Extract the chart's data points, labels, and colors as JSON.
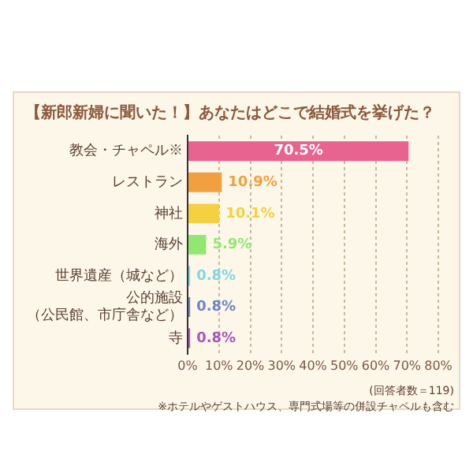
{
  "chart_data": {
    "type": "bar",
    "orientation": "horizontal",
    "title": "【新郎新婦に聞いた！】あなたはどこで結婚式を挙げた？",
    "categories": [
      "教会・チャペル※",
      "レストラン",
      "神社",
      "海外",
      "世界遺産（城など）",
      "公的施設（公民館、市庁舎など）",
      "寺"
    ],
    "values": [
      70.5,
      10.9,
      10.1,
      5.9,
      0.8,
      0.8,
      0.8
    ],
    "colors": [
      "#e8638f",
      "#f0a040",
      "#f5d040",
      "#90e870",
      "#80d8e0",
      "#6a86c4",
      "#a858b8"
    ],
    "value_labels": [
      "70.5%",
      "10.9%",
      "10.1%",
      "5.9%",
      "0.8%",
      "0.8%",
      "0.8%"
    ],
    "xlim": [
      0,
      80
    ],
    "xticks": [
      {
        "value": 0,
        "label": "0%"
      },
      {
        "value": 10,
        "label": "10%"
      },
      {
        "value": 20,
        "label": "20%"
      },
      {
        "value": 30,
        "label": "30%"
      },
      {
        "value": 40,
        "label": "40%"
      },
      {
        "value": 50,
        "label": "50%"
      },
      {
        "value": 60,
        "label": "60%"
      },
      {
        "value": 70,
        "label": "70%"
      },
      {
        "value": 80,
        "label": "80%"
      }
    ],
    "grid": "x",
    "legend": false,
    "annotations": [
      "(回答者数＝119)",
      "※ホテルやゲストハウス、専門式場等の併設チャペルも含む"
    ]
  }
}
